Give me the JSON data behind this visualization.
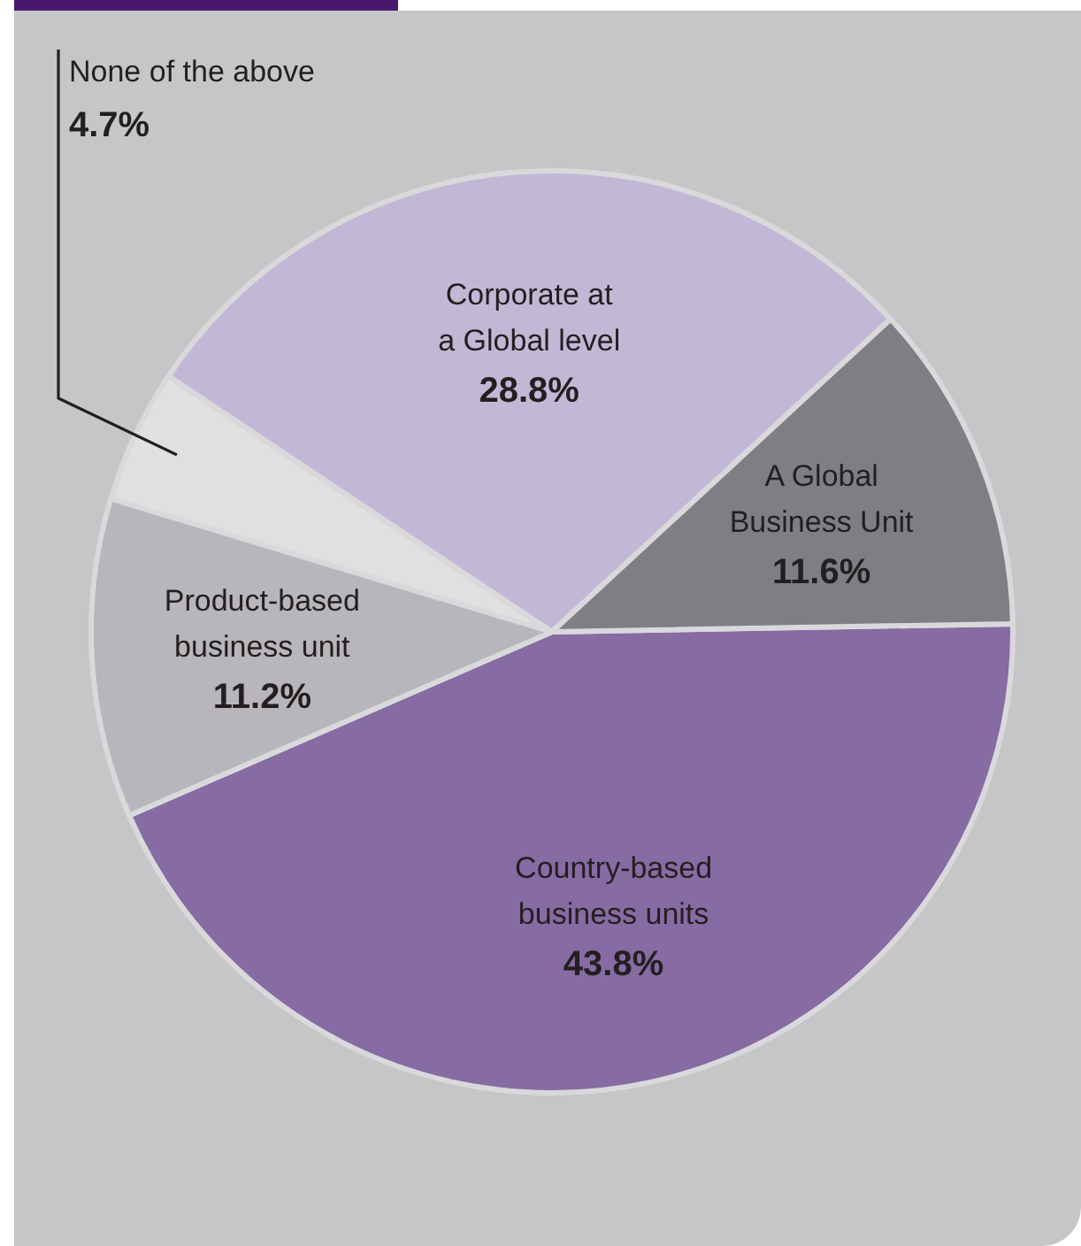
{
  "chart_data": {
    "type": "pie",
    "categories": [
      "Country-based business units",
      "Product-based business unit",
      "None of the above",
      "Corporate at a Global level",
      "A Global Business Unit"
    ],
    "values": [
      43.8,
      11.2,
      4.7,
      28.8,
      11.6
    ],
    "value_labels": [
      "43.8%",
      "11.2%",
      "4.7%",
      "28.8%",
      "11.6%"
    ],
    "colors": [
      "#876ba3",
      "#b8b6bb",
      "#e0e0e2",
      "#c2b8d6",
      "#7e7f85"
    ],
    "legend": false
  }
}
